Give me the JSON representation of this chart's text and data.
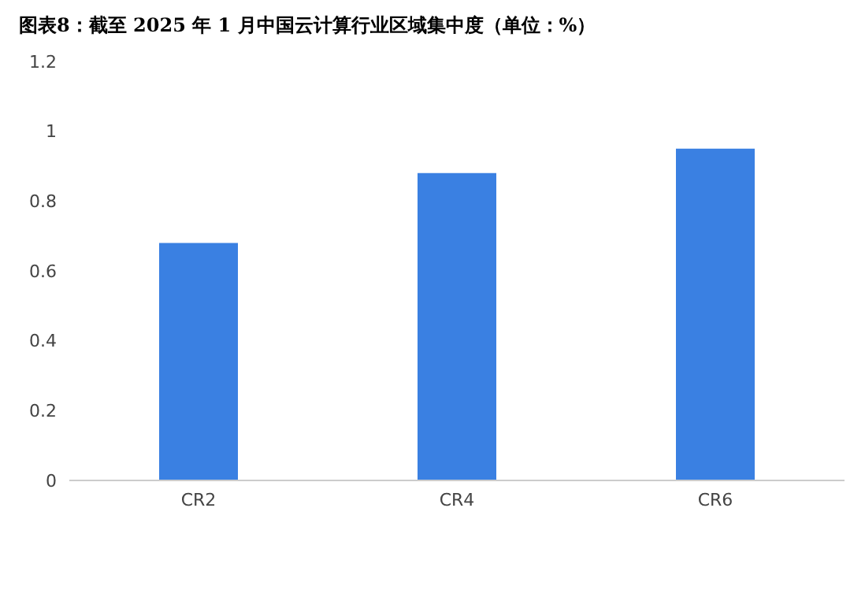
{
  "chart_data": {
    "type": "bar",
    "title": "图表8：截至 2025 年 1 月中国云计算行业区域集中度（单位：%）",
    "categories": [
      "CR2",
      "CR4",
      "CR6"
    ],
    "values": [
      0.68,
      0.88,
      0.95
    ],
    "color": "#3a80e2",
    "ylim": [
      0,
      1.2
    ],
    "yticks": [
      0,
      0.2,
      0.4,
      0.6,
      0.8,
      1,
      1.2
    ],
    "grid": false
  }
}
